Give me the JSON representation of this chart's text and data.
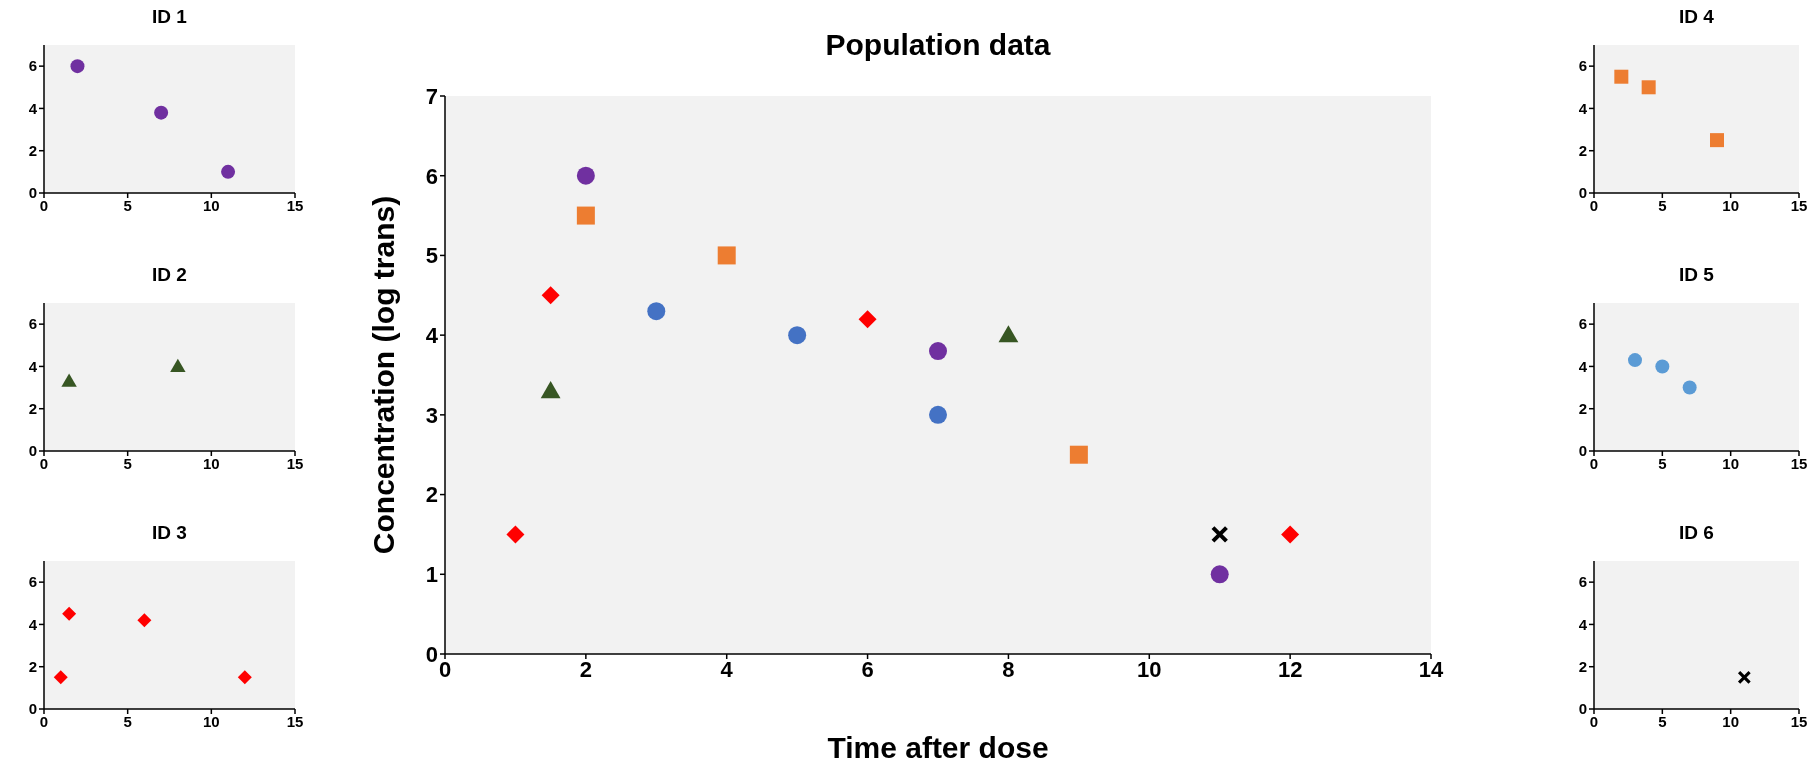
{
  "chart_data": [
    {
      "type": "scatter",
      "title": "ID 1",
      "xlim": [
        0,
        15
      ],
      "xticks": [
        0,
        5,
        10,
        15
      ],
      "ylim": [
        0,
        7
      ],
      "yticks": [
        0,
        2,
        4,
        6
      ],
      "series": [
        {
          "color": "#7030a0",
          "marker": "circle",
          "x": [
            2,
            7,
            11
          ],
          "values": [
            6,
            3.8,
            1
          ]
        }
      ]
    },
    {
      "type": "scatter",
      "title": "ID 2",
      "xlim": [
        0,
        15
      ],
      "xticks": [
        0,
        5,
        10,
        15
      ],
      "ylim": [
        0,
        7
      ],
      "yticks": [
        0,
        2,
        4,
        6
      ],
      "series": [
        {
          "color": "#375623",
          "marker": "triangle",
          "x": [
            1.5,
            8
          ],
          "values": [
            3.3,
            4
          ]
        }
      ]
    },
    {
      "type": "scatter",
      "title": "ID 3",
      "xlim": [
        0,
        15
      ],
      "xticks": [
        0,
        5,
        10,
        15
      ],
      "ylim": [
        0,
        7
      ],
      "yticks": [
        0,
        2,
        4,
        6
      ],
      "series": [
        {
          "color": "#ff0000",
          "marker": "diamond",
          "x": [
            1,
            1.5,
            6,
            12
          ],
          "values": [
            1.5,
            4.5,
            4.2,
            1.5
          ]
        }
      ]
    },
    {
      "type": "scatter",
      "title": "Population data",
      "xlabel": "Time after dose",
      "ylabel": "Concentration (log trans)",
      "xlim": [
        0,
        14
      ],
      "xticks": [
        0,
        2,
        4,
        6,
        8,
        10,
        12,
        14
      ],
      "ylim": [
        0,
        7
      ],
      "yticks": [
        0,
        1,
        2,
        3,
        4,
        5,
        6,
        7
      ],
      "series": [
        {
          "color": "#7030a0",
          "marker": "circle",
          "x": [
            2,
            7,
            11
          ],
          "values": [
            6,
            3.8,
            1
          ]
        },
        {
          "color": "#375623",
          "marker": "triangle",
          "x": [
            1.5,
            8
          ],
          "values": [
            3.3,
            4
          ]
        },
        {
          "color": "#ff0000",
          "marker": "diamond",
          "x": [
            1,
            1.5,
            6,
            12
          ],
          "values": [
            1.5,
            4.5,
            4.2,
            1.5
          ]
        },
        {
          "color": "#ed7d31",
          "marker": "square",
          "x": [
            2,
            4,
            9
          ],
          "values": [
            5.5,
            5,
            2.5
          ]
        },
        {
          "color": "#4472c4",
          "marker": "circle",
          "x": [
            3,
            5,
            7
          ],
          "values": [
            4.3,
            4,
            3
          ]
        },
        {
          "color": "#000000",
          "marker": "cross",
          "x": [
            11
          ],
          "values": [
            1.5
          ]
        }
      ]
    },
    {
      "type": "scatter",
      "title": "ID 4",
      "xlim": [
        0,
        15
      ],
      "xticks": [
        0,
        5,
        10,
        15
      ],
      "ylim": [
        0,
        7
      ],
      "yticks": [
        0,
        2,
        4,
        6
      ],
      "series": [
        {
          "color": "#ed7d31",
          "marker": "square",
          "x": [
            2,
            4,
            9
          ],
          "values": [
            5.5,
            5,
            2.5
          ]
        }
      ]
    },
    {
      "type": "scatter",
      "title": "ID 5",
      "xlim": [
        0,
        15
      ],
      "xticks": [
        0,
        5,
        10,
        15
      ],
      "ylim": [
        0,
        7
      ],
      "yticks": [
        0,
        2,
        4,
        6
      ],
      "series": [
        {
          "color": "#5b9bd5",
          "marker": "circle",
          "x": [
            3,
            5,
            7
          ],
          "values": [
            4.3,
            4,
            3
          ]
        }
      ]
    },
    {
      "type": "scatter",
      "title": "ID 6",
      "xlim": [
        0,
        15
      ],
      "xticks": [
        0,
        5,
        10,
        15
      ],
      "ylim": [
        0,
        7
      ],
      "yticks": [
        0,
        2,
        4,
        6
      ],
      "series": [
        {
          "color": "#000000",
          "marker": "cross",
          "x": [
            11
          ],
          "values": [
            1.5
          ]
        }
      ]
    }
  ]
}
